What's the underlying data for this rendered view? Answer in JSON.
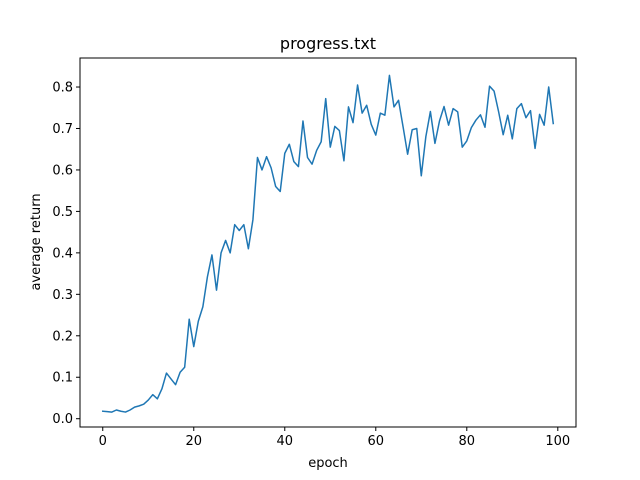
{
  "chart_data": {
    "type": "line",
    "title": "progress.txt",
    "xlabel": "epoch",
    "ylabel": "average return",
    "xlim": [
      -5,
      104
    ],
    "ylim": [
      -0.02,
      0.87
    ],
    "xticks": [
      0,
      20,
      40,
      60,
      80,
      100
    ],
    "xtick_labels": [
      "0",
      "20",
      "40",
      "60",
      "80",
      "100"
    ],
    "yticks": [
      0.0,
      0.1,
      0.2,
      0.3,
      0.4,
      0.5,
      0.6,
      0.7,
      0.8
    ],
    "ytick_labels": [
      "0.0",
      "0.1",
      "0.2",
      "0.3",
      "0.4",
      "0.5",
      "0.6",
      "0.7",
      "0.8"
    ],
    "grid": false,
    "series": [
      {
        "color": "#1f77b4",
        "x": [
          0,
          1,
          2,
          3,
          4,
          5,
          6,
          7,
          8,
          9,
          10,
          11,
          12,
          13,
          14,
          15,
          16,
          17,
          18,
          19,
          20,
          21,
          22,
          23,
          24,
          25,
          26,
          27,
          28,
          29,
          30,
          31,
          32,
          33,
          34,
          35,
          36,
          37,
          38,
          39,
          40,
          41,
          42,
          43,
          44,
          45,
          46,
          47,
          48,
          49,
          50,
          51,
          52,
          53,
          54,
          55,
          56,
          57,
          58,
          59,
          60,
          61,
          62,
          63,
          64,
          65,
          66,
          67,
          68,
          69,
          70,
          71,
          72,
          73,
          74,
          75,
          76,
          77,
          78,
          79,
          80,
          81,
          82,
          83,
          84,
          85,
          86,
          87,
          88,
          89,
          90,
          91,
          92,
          93,
          94,
          95,
          96,
          97,
          98,
          99
        ],
        "y": [
          0.018,
          0.017,
          0.016,
          0.021,
          0.018,
          0.016,
          0.021,
          0.028,
          0.031,
          0.035,
          0.045,
          0.058,
          0.048,
          0.072,
          0.11,
          0.096,
          0.082,
          0.112,
          0.124,
          0.24,
          0.174,
          0.235,
          0.27,
          0.342,
          0.395,
          0.31,
          0.4,
          0.43,
          0.4,
          0.468,
          0.454,
          0.468,
          0.41,
          0.48,
          0.63,
          0.6,
          0.632,
          0.605,
          0.56,
          0.548,
          0.64,
          0.662,
          0.62,
          0.608,
          0.718,
          0.63,
          0.614,
          0.647,
          0.668,
          0.772,
          0.655,
          0.705,
          0.695,
          0.622,
          0.752,
          0.714,
          0.805,
          0.737,
          0.756,
          0.71,
          0.684,
          0.737,
          0.732,
          0.828,
          0.752,
          0.768,
          0.704,
          0.638,
          0.697,
          0.7,
          0.586,
          0.68,
          0.741,
          0.664,
          0.718,
          0.753,
          0.708,
          0.748,
          0.74,
          0.655,
          0.67,
          0.702,
          0.72,
          0.733,
          0.703,
          0.802,
          0.79,
          0.74,
          0.685,
          0.732,
          0.675,
          0.748,
          0.76,
          0.726,
          0.743,
          0.652,
          0.734,
          0.708,
          0.8,
          0.712
        ]
      }
    ]
  }
}
